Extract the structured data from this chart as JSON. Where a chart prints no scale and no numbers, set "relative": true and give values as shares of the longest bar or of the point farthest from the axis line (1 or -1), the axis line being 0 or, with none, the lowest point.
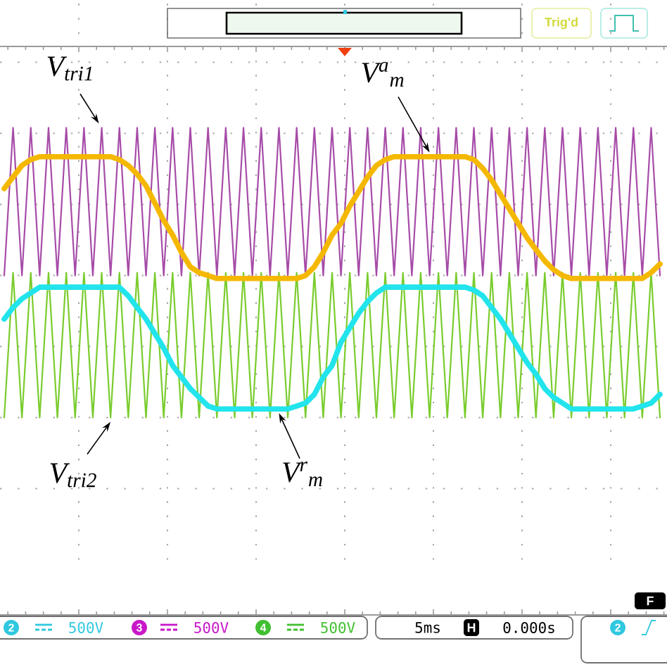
{
  "chart_data": {
    "type": "line",
    "relative": true,
    "grid": true,
    "categories": [
      null,
      null,
      null,
      null,
      null,
      null,
      null,
      null,
      null,
      null,
      null,
      null,
      null,
      null,
      null,
      null,
      null,
      null,
      null,
      null,
      null,
      null,
      null,
      null,
      null,
      null,
      null,
      null,
      null,
      null,
      null,
      null,
      null,
      null,
      null,
      null,
      null,
      null,
      null,
      null,
      null,
      null,
      null,
      null,
      null,
      null,
      null,
      null,
      null,
      null,
      null,
      null,
      null,
      null,
      null,
      null,
      null,
      null,
      null,
      null,
      null,
      null,
      null,
      null,
      null,
      null,
      null,
      null,
      null,
      null,
      null,
      null,
      null,
      null,
      null
    ],
    "series": [
      {
        "name": "V$_{tri1}$",
        "color": "#a64ca8",
        "values": [
          0.49,
          1,
          0.49,
          1,
          0.49,
          1,
          0.49,
          1,
          0.49,
          1,
          0.49,
          1,
          0.49,
          1,
          0.49,
          1,
          0.49,
          1,
          0.49,
          1,
          0.49,
          1,
          0.49,
          1,
          0.49,
          1,
          0.49,
          1,
          0.49,
          1,
          0.49,
          1,
          0.49,
          1,
          0.49,
          1,
          0.49,
          1,
          0.49,
          1,
          0.49,
          1,
          0.49,
          1,
          0.49,
          1,
          0.49,
          1,
          0.49,
          1,
          0.49,
          1,
          0.49,
          1,
          0.49,
          1,
          0.49,
          1,
          0.49,
          1,
          0.49,
          1,
          0.49,
          1,
          0.49,
          1,
          0.49,
          1,
          0.49,
          1,
          0.49,
          1,
          0.49,
          1,
          0.49
        ]
      },
      {
        "name": "V$_{tri2}$",
        "color": "#7acc2e",
        "values": [
          0,
          0.5,
          0,
          0.5,
          0,
          0.5,
          0,
          0.5,
          0,
          0.5,
          0,
          0.5,
          0,
          0.5,
          0,
          0.5,
          0,
          0.5,
          0,
          0.5,
          0,
          0.5,
          0,
          0.5,
          0,
          0.5,
          0,
          0.5,
          0,
          0.5,
          0,
          0.5,
          0,
          0.5,
          0,
          0.5,
          0,
          0.5,
          0,
          0.5,
          0,
          0.5,
          0,
          0.5,
          0,
          0.5,
          0,
          0.5,
          0,
          0.5,
          0,
          0.5,
          0,
          0.5,
          0,
          0.5,
          0,
          0.5,
          0,
          0.5,
          0,
          0.5,
          0,
          0.5,
          0,
          0.5,
          0,
          0.5,
          0,
          0.5,
          0,
          0.5,
          0,
          0.5,
          0
        ]
      },
      {
        "name": "V$^{a}$$_{m}$",
        "color": "#f5b800",
        "values": [
          0.79,
          0.83,
          0.87,
          0.89,
          0.9,
          0.9,
          0.9,
          0.9,
          0.9,
          0.9,
          0.9,
          0.9,
          0.9,
          0.89,
          0.87,
          0.84,
          0.8,
          0.74,
          0.68,
          0.63,
          0.57,
          0.52,
          0.5,
          0.49,
          0.48,
          0.48,
          0.48,
          0.48,
          0.48,
          0.48,
          0.48,
          0.48,
          0.48,
          0.48,
          0.49,
          0.52,
          0.57,
          0.63,
          0.67,
          0.73,
          0.78,
          0.83,
          0.87,
          0.89,
          0.9,
          0.9,
          0.9,
          0.9,
          0.9,
          0.9,
          0.9,
          0.9,
          0.9,
          0.89,
          0.86,
          0.82,
          0.77,
          0.72,
          0.67,
          0.62,
          0.58,
          0.54,
          0.51,
          0.49,
          0.48,
          0.48,
          0.48,
          0.48,
          0.48,
          0.48,
          0.48,
          0.48,
          0.48,
          0.5,
          0.53
        ]
      },
      {
        "name": "V$^{r}$$_{m}$",
        "color": "#22e4ec",
        "values": [
          0.34,
          0.38,
          0.41,
          0.43,
          0.45,
          0.45,
          0.45,
          0.45,
          0.45,
          0.45,
          0.45,
          0.45,
          0.45,
          0.45,
          0.42,
          0.38,
          0.34,
          0.29,
          0.24,
          0.18,
          0.14,
          0.1,
          0.07,
          0.04,
          0.03,
          0.03,
          0.03,
          0.03,
          0.03,
          0.03,
          0.03,
          0.03,
          0.03,
          0.04,
          0.05,
          0.08,
          0.14,
          0.18,
          0.26,
          0.31,
          0.36,
          0.4,
          0.43,
          0.45,
          0.45,
          0.45,
          0.45,
          0.45,
          0.45,
          0.45,
          0.45,
          0.45,
          0.45,
          0.44,
          0.42,
          0.38,
          0.34,
          0.29,
          0.24,
          0.19,
          0.15,
          0.1,
          0.07,
          0.05,
          0.03,
          0.03,
          0.03,
          0.03,
          0.03,
          0.03,
          0.03,
          0.03,
          0.04,
          0.05,
          0.08
        ]
      }
    ],
    "annotations": [
      "Trig'd",
      "2",
      "500V",
      "3",
      "500V",
      "4",
      "500V",
      "5ms",
      "H",
      "0.000s",
      "2",
      "F"
    ]
  }
}
